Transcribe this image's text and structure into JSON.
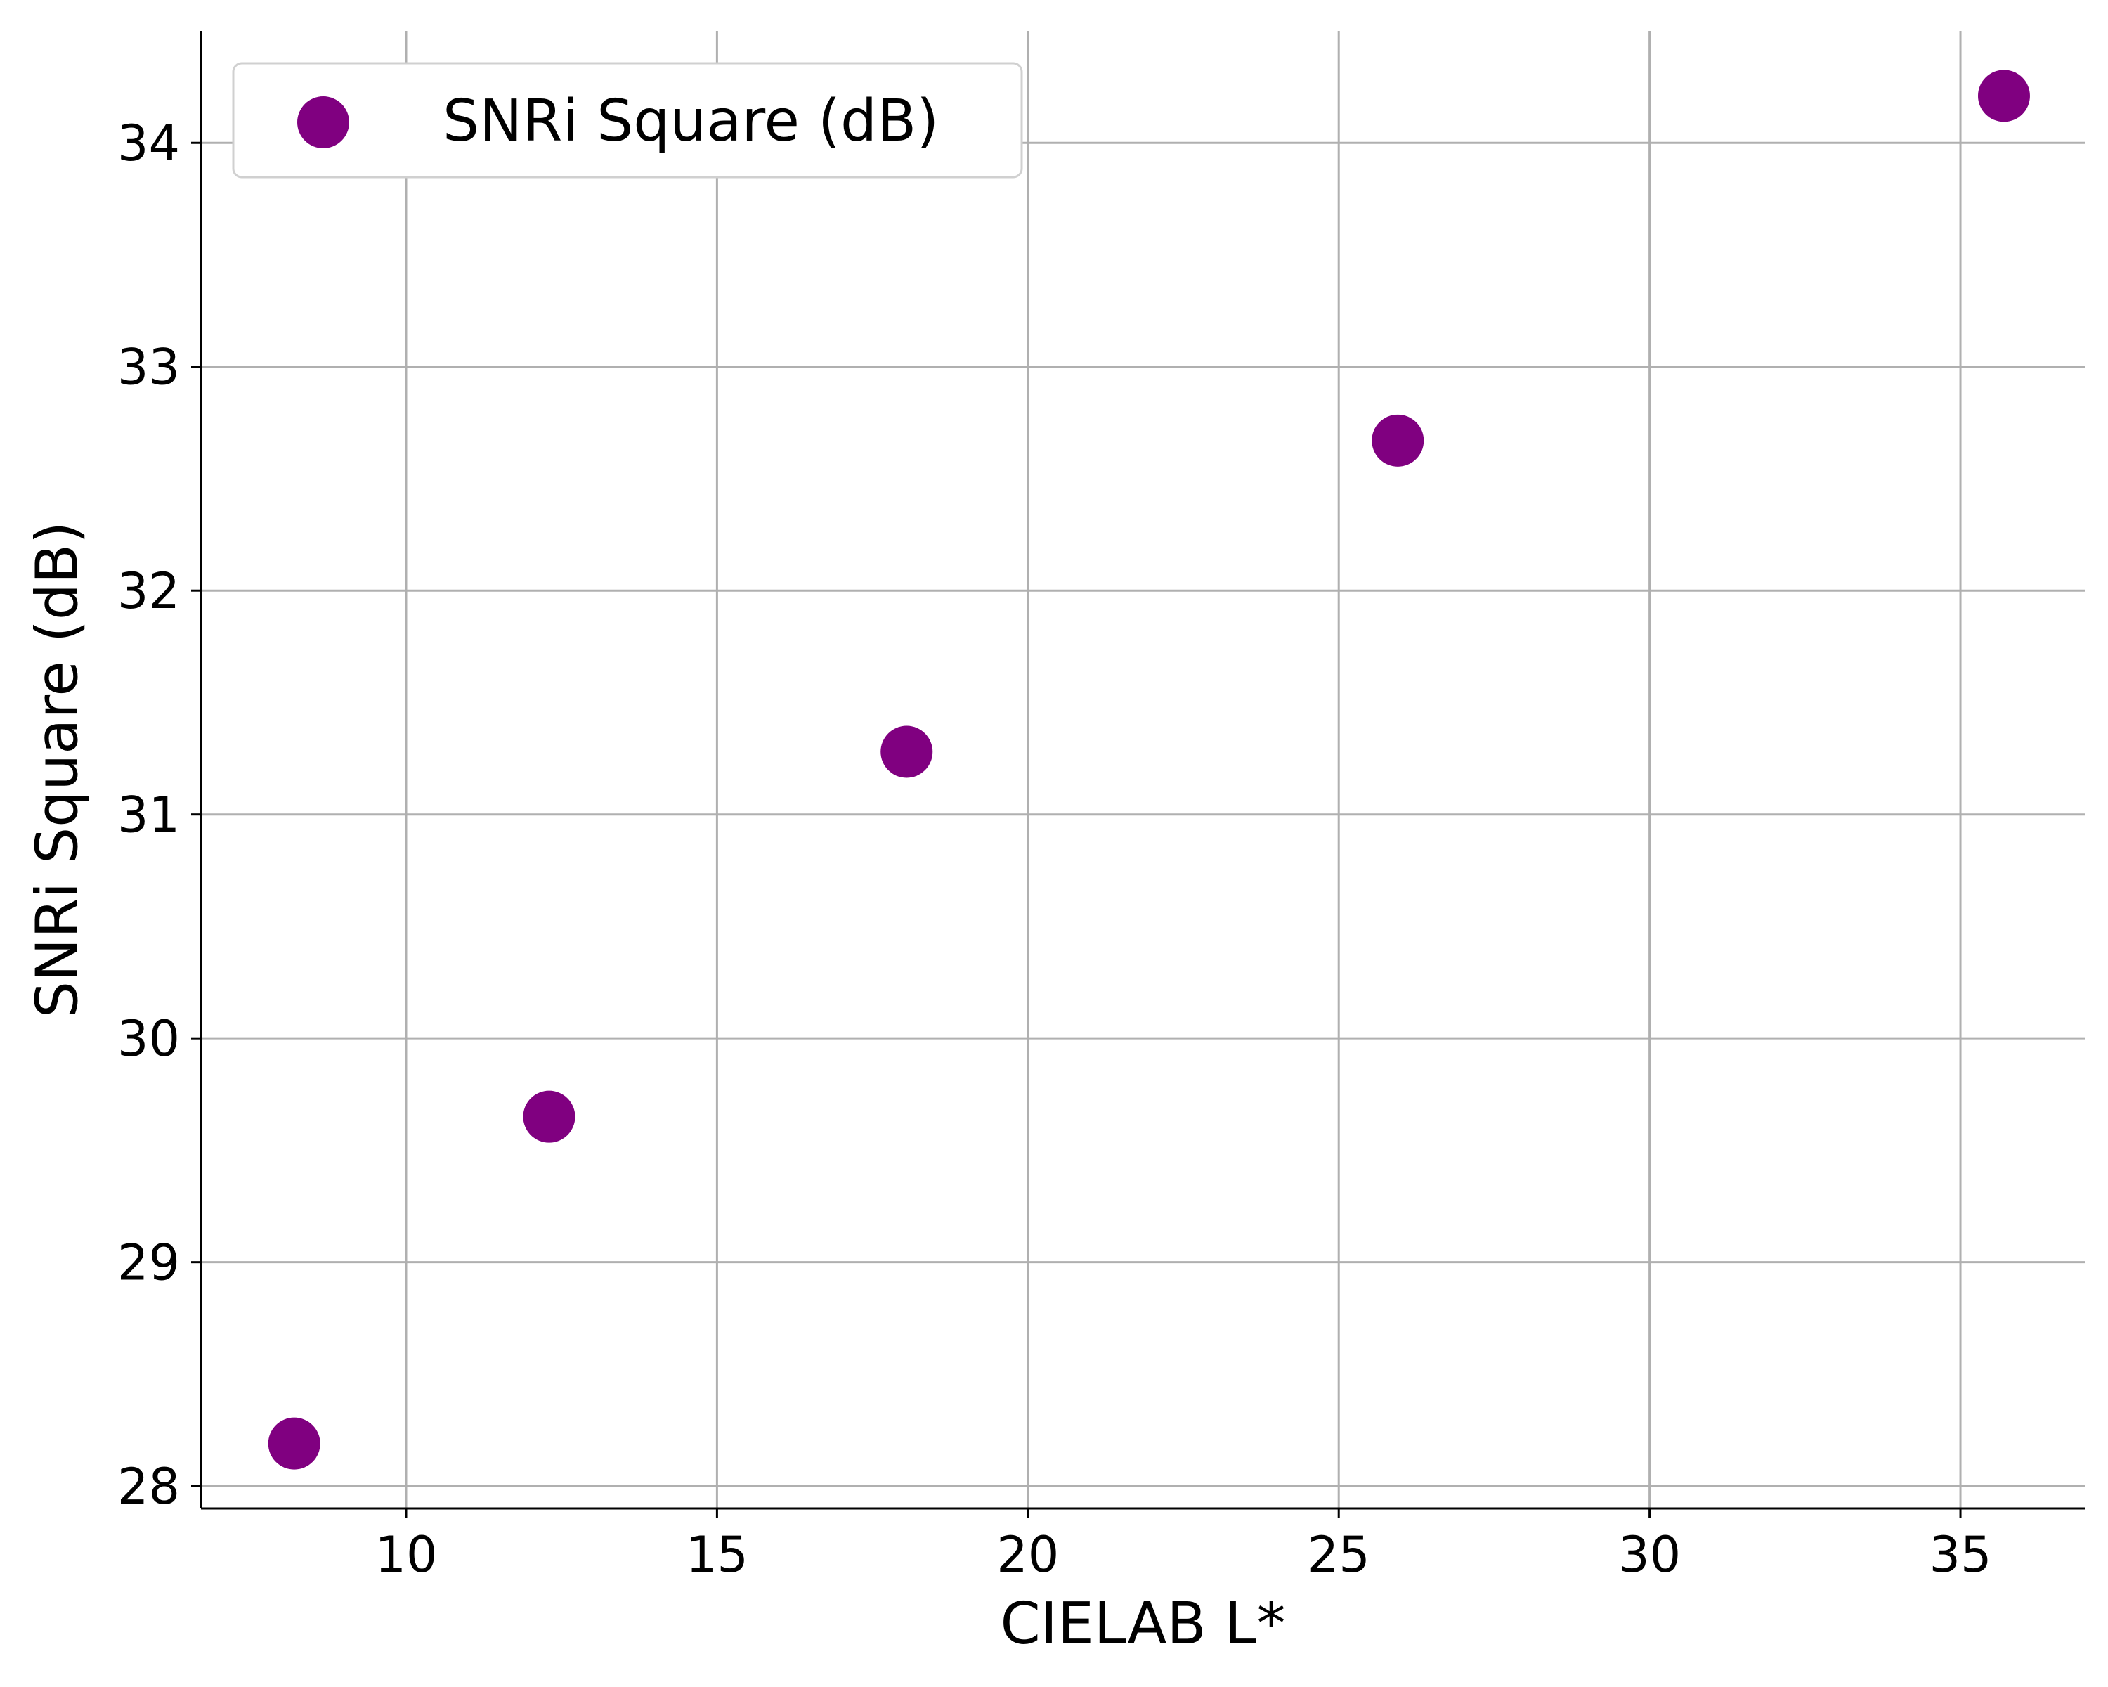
{
  "chart_data": {
    "type": "scatter",
    "title": "",
    "xlabel": "CIELAB L*",
    "ylabel": "SNRi Square (dB)",
    "xlim": [
      6.7,
      37.0
    ],
    "ylim": [
      27.9,
      34.5
    ],
    "xticks": [
      10,
      15,
      20,
      25,
      30,
      35
    ],
    "yticks": [
      28,
      29,
      30,
      31,
      32,
      33,
      34
    ],
    "grid": true,
    "legend": {
      "placement": "top-left"
    },
    "series": [
      {
        "name": "SNRi Square (dB)",
        "color": "#800080",
        "marker": "circle",
        "points": [
          {
            "x": 8.2,
            "y": 28.19
          },
          {
            "x": 12.3,
            "y": 29.65
          },
          {
            "x": 18.05,
            "y": 31.28
          },
          {
            "x": 25.95,
            "y": 32.67
          },
          {
            "x": 35.7,
            "y": 34.21
          }
        ]
      }
    ]
  }
}
